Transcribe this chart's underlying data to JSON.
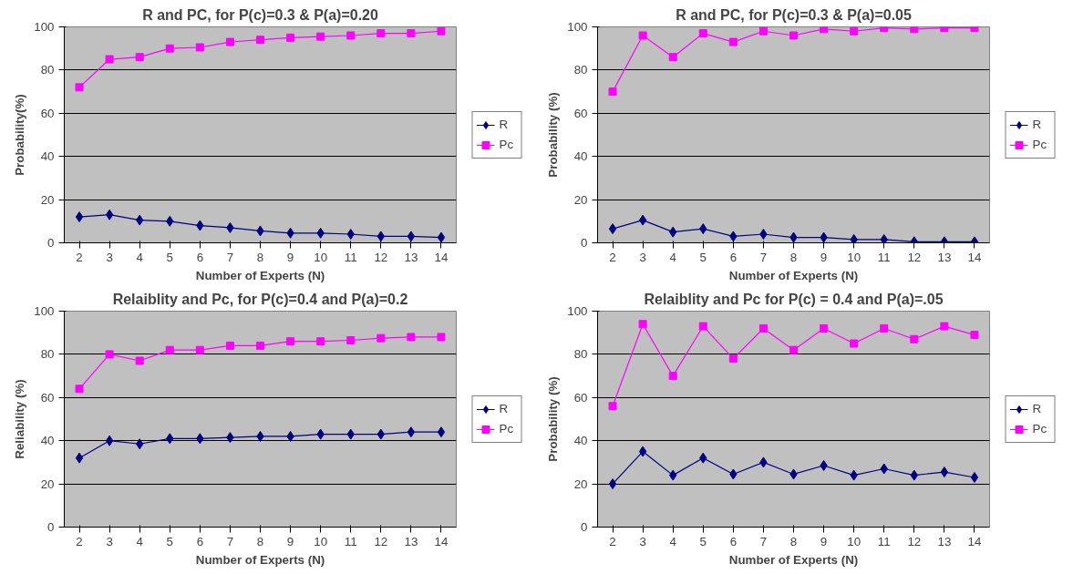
{
  "chart_data": [
    {
      "type": "line",
      "title": "R and PC, for P(c)=0.3 & P(a)=0.20",
      "xlabel": "Number of Experts (N)",
      "ylabel": "Probability(%)",
      "categories": [
        "2",
        "3",
        "4",
        "5",
        "6",
        "7",
        "8",
        "9",
        "10",
        "11",
        "12",
        "13",
        "14"
      ],
      "ylim": [
        0,
        100
      ],
      "yticks": [
        0,
        20,
        40,
        60,
        80,
        100
      ],
      "grid": "y",
      "legend": "right",
      "series": [
        {
          "name": "R",
          "color": "#000080",
          "marker": "diamond",
          "values": [
            12,
            13,
            10.5,
            10,
            8,
            7,
            5.5,
            4.5,
            4.5,
            4,
            3,
            3,
            2.5
          ]
        },
        {
          "name": "Pc",
          "color": "#ff00ff",
          "marker": "square",
          "values": [
            72,
            85,
            86,
            90,
            90.5,
            93,
            94,
            95,
            95.5,
            96,
            97,
            97,
            98
          ]
        }
      ]
    },
    {
      "type": "line",
      "title": "R and PC, for P(c)=0.3 & P(a)=0.05",
      "xlabel": "Number of Experts (N)",
      "ylabel": "Probability (%)",
      "categories": [
        "2",
        "3",
        "4",
        "5",
        "6",
        "7",
        "8",
        "9",
        "10",
        "11",
        "12",
        "13",
        "14"
      ],
      "ylim": [
        0,
        100
      ],
      "yticks": [
        0,
        20,
        40,
        60,
        80,
        100
      ],
      "grid": "y",
      "legend": "right",
      "series": [
        {
          "name": "R",
          "color": "#000080",
          "marker": "diamond",
          "values": [
            6.5,
            10.5,
            5,
            6.5,
            3,
            4,
            2.5,
            2.5,
            1.5,
            1.5,
            0.5,
            0.5,
            0.5
          ]
        },
        {
          "name": "Pc",
          "color": "#ff00ff",
          "marker": "square",
          "values": [
            70,
            96,
            86,
            97,
            93,
            98,
            96,
            99,
            98,
            99.5,
            99,
            99.5,
            99.5
          ]
        }
      ]
    },
    {
      "type": "line",
      "title": "Relaiblity and Pc, for P(c)=0.4 and P(a)=0.2",
      "xlabel": "Number of Experts (N)",
      "ylabel": "Reliability (%)",
      "categories": [
        "2",
        "3",
        "4",
        "5",
        "6",
        "7",
        "8",
        "9",
        "10",
        "11",
        "12",
        "13",
        "14"
      ],
      "ylim": [
        0,
        100
      ],
      "yticks": [
        0,
        20,
        40,
        60,
        80,
        100
      ],
      "grid": "y",
      "legend": "right",
      "series": [
        {
          "name": "R",
          "color": "#000080",
          "marker": "diamond",
          "values": [
            32,
            40,
            38.5,
            41,
            41,
            41.5,
            42,
            42,
            43,
            43,
            43,
            44,
            44
          ]
        },
        {
          "name": "Pc",
          "color": "#ff00ff",
          "marker": "square",
          "values": [
            64,
            80,
            77,
            82,
            82,
            84,
            84,
            86,
            86,
            86.5,
            87.5,
            88,
            88
          ]
        }
      ]
    },
    {
      "type": "line",
      "title": "Relaiblity and Pc for P(c) = 0.4 and P(a)=.05",
      "xlabel": "Number of Experts (N)",
      "ylabel": "Probability (%)",
      "categories": [
        "2",
        "3",
        "4",
        "5",
        "6",
        "7",
        "8",
        "9",
        "10",
        "11",
        "12",
        "13",
        "14"
      ],
      "ylim": [
        0,
        100
      ],
      "yticks": [
        0,
        20,
        40,
        60,
        80,
        100
      ],
      "grid": "y",
      "legend": "right",
      "series": [
        {
          "name": "R",
          "color": "#000080",
          "marker": "diamond",
          "values": [
            20,
            35,
            24,
            32,
            24.5,
            30,
            24.5,
            28.5,
            24,
            27,
            24,
            25.5,
            23
          ]
        },
        {
          "name": "Pc",
          "color": "#ff00ff",
          "marker": "square",
          "values": [
            56,
            94,
            70,
            93,
            78,
            92,
            82,
            92,
            85,
            92,
            87,
            93,
            89
          ]
        }
      ]
    }
  ]
}
